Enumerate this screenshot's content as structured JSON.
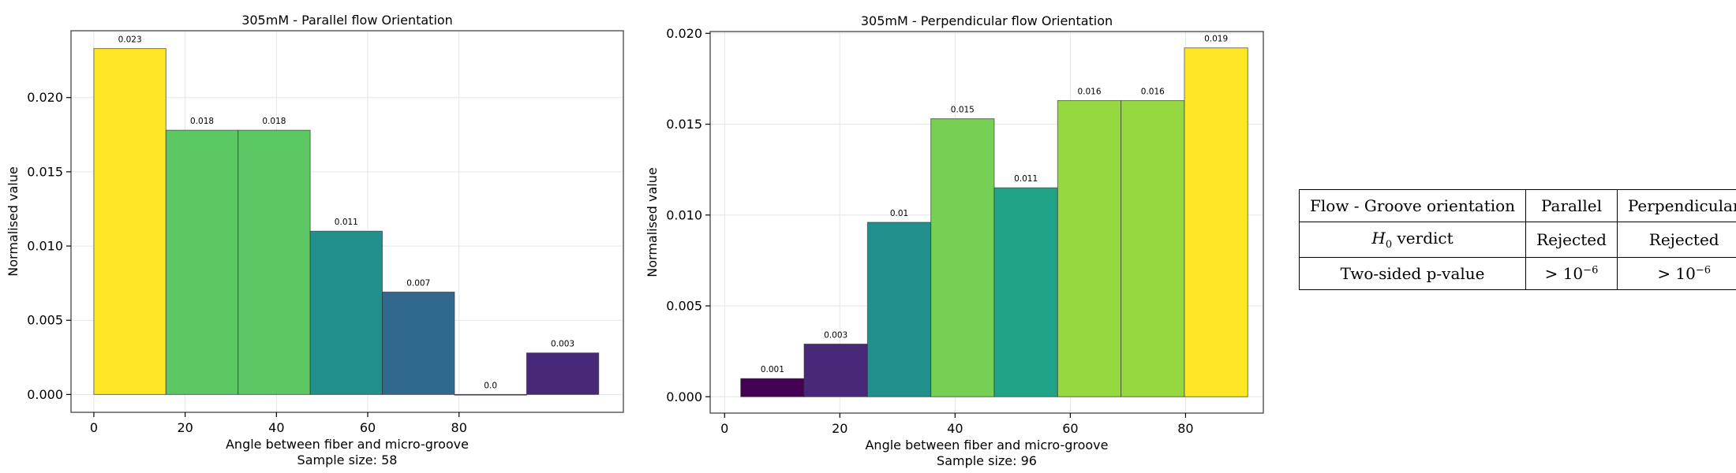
{
  "chart_data": [
    {
      "type": "bar",
      "title": "305mM - Parallel flow Orientation",
      "xlabel": "Angle between fiber and micro-groove",
      "xlabel_sub": "Sample size: 58",
      "ylabel": "Normalised value",
      "xlim": [
        -5,
        116
      ],
      "ylim": [
        -0.0012,
        0.0245
      ],
      "xticks": [
        "0",
        "20",
        "40",
        "60",
        "80"
      ],
      "yticks": [
        "0.000",
        "0.005",
        "0.010",
        "0.015",
        "0.020"
      ],
      "grid": true,
      "bins": [
        {
          "x0": 0.0,
          "x1": 15.8,
          "value": 0.0233,
          "label": "0.023",
          "color": "#fde725"
        },
        {
          "x0": 15.8,
          "x1": 31.6,
          "value": 0.0178,
          "label": "0.018",
          "color": "#5cc863"
        },
        {
          "x0": 31.6,
          "x1": 47.4,
          "value": 0.0178,
          "label": "0.018",
          "color": "#5cc863"
        },
        {
          "x0": 47.4,
          "x1": 63.2,
          "value": 0.011,
          "label": "0.011",
          "color": "#21908d"
        },
        {
          "x0": 63.2,
          "x1": 79.0,
          "value": 0.0069,
          "label": "0.007",
          "color": "#31688e"
        },
        {
          "x0": 79.0,
          "x1": 94.8,
          "value": 0.0,
          "label": "0.0",
          "color": "#440154"
        },
        {
          "x0": 94.8,
          "x1": 110.6,
          "value": 0.0028,
          "label": "0.003",
          "color": "#482878"
        }
      ]
    },
    {
      "type": "bar",
      "title": "305mM - Perpendicular flow Orientation",
      "xlabel": "Angle between fiber and micro-groove",
      "xlabel_sub": "Sample size: 96",
      "ylabel": "Normalised value",
      "xlim": [
        -2.5,
        93.5
      ],
      "ylim": [
        -0.0009,
        0.0201
      ],
      "xticks": [
        "0",
        "20",
        "40",
        "60",
        "80"
      ],
      "yticks": [
        "0.000",
        "0.005",
        "0.010",
        "0.015",
        "0.020"
      ],
      "grid": true,
      "bins": [
        {
          "x0": 2.8,
          "x1": 13.8,
          "value": 0.001,
          "label": "0.001",
          "color": "#440154"
        },
        {
          "x0": 13.8,
          "x1": 24.8,
          "value": 0.0029,
          "label": "0.003",
          "color": "#482878"
        },
        {
          "x0": 24.8,
          "x1": 35.8,
          "value": 0.0096,
          "label": "0.01",
          "color": "#21908d"
        },
        {
          "x0": 35.8,
          "x1": 46.8,
          "value": 0.0153,
          "label": "0.015",
          "color": "#75d054"
        },
        {
          "x0": 46.8,
          "x1": 57.8,
          "value": 0.0115,
          "label": "0.011",
          "color": "#20a386"
        },
        {
          "x0": 57.8,
          "x1": 68.8,
          "value": 0.0163,
          "label": "0.016",
          "color": "#95d840"
        },
        {
          "x0": 68.8,
          "x1": 79.8,
          "value": 0.0163,
          "label": "0.016",
          "color": "#95d840"
        },
        {
          "x0": 79.8,
          "x1": 90.8,
          "value": 0.0192,
          "label": "0.019",
          "color": "#fde725"
        }
      ]
    }
  ],
  "stats_table": {
    "header": {
      "label": "Flow - Groove orientation",
      "col1": "Parallel",
      "col2": "Perpendicular"
    },
    "verdict_row": {
      "label_symbol": "H",
      "label_sub": "0",
      "label_rest": " verdict",
      "col1": "Rejected",
      "col2": "Rejected"
    },
    "pvalue_row": {
      "label": "Two-sided p-value",
      "col1_base": "> 10",
      "col1_exp": "−6",
      "col2_base": "> 10",
      "col2_exp": "−6"
    }
  }
}
